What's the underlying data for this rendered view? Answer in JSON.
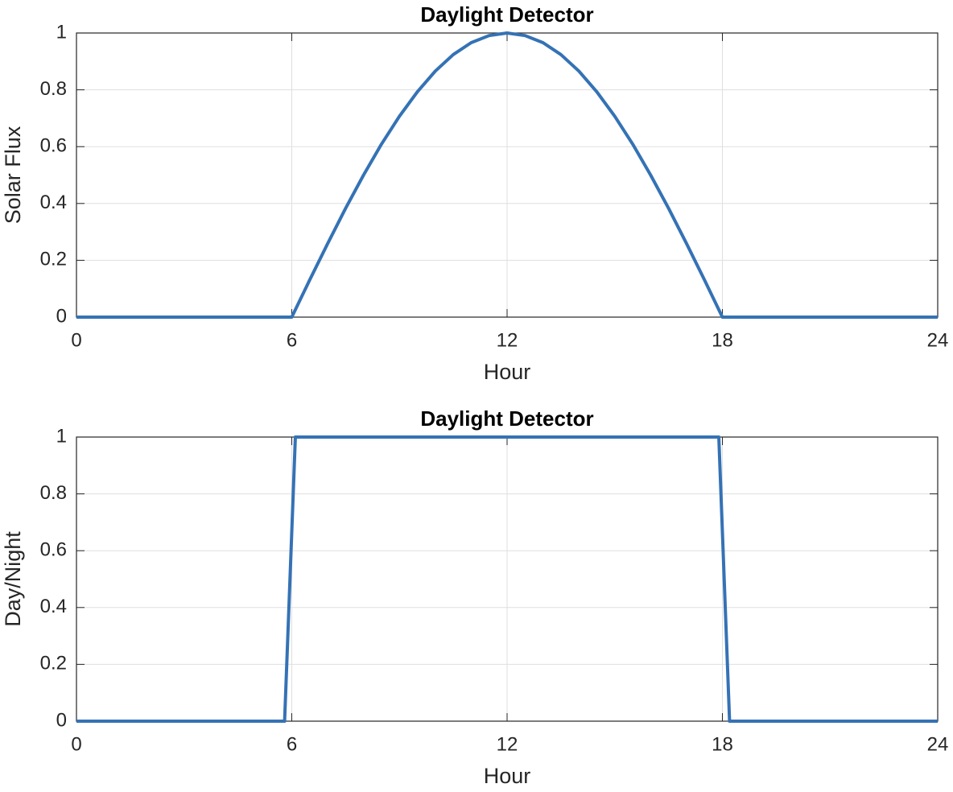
{
  "chart_data": [
    {
      "type": "line",
      "title": "Daylight Detector",
      "xlabel": "Hour",
      "ylabel": "Solar Flux",
      "color": "#3572b5",
      "x": [
        0,
        0.5,
        1,
        1.5,
        2,
        2.5,
        3,
        3.5,
        4,
        4.5,
        5,
        5.5,
        6,
        6.5,
        7,
        7.5,
        8,
        8.5,
        9,
        9.5,
        10,
        10.5,
        11,
        11.5,
        12,
        12.5,
        13,
        13.5,
        14,
        14.5,
        15,
        15.5,
        16,
        16.5,
        17,
        17.5,
        18,
        18.5,
        19,
        19.5,
        20,
        20.5,
        21,
        21.5,
        22,
        22.5,
        23,
        23.5,
        24
      ],
      "values": [
        0,
        0,
        0,
        0,
        0,
        0,
        0,
        0,
        0,
        0,
        0,
        0,
        0,
        0.131,
        0.259,
        0.383,
        0.5,
        0.609,
        0.707,
        0.793,
        0.866,
        0.924,
        0.966,
        0.991,
        1,
        0.991,
        0.966,
        0.924,
        0.866,
        0.793,
        0.707,
        0.609,
        0.5,
        0.383,
        0.259,
        0.131,
        0,
        0,
        0,
        0,
        0,
        0,
        0,
        0,
        0,
        0,
        0,
        0,
        0
      ],
      "xlim": [
        0,
        24
      ],
      "xticks": [
        0,
        6,
        12,
        18,
        24
      ],
      "ylim": [
        0,
        1
      ],
      "yticks": [
        0,
        0.2,
        0.4,
        0.6,
        0.8,
        1
      ],
      "grid": true
    },
    {
      "type": "line",
      "title": "Daylight Detector",
      "xlabel": "Hour",
      "ylabel": "Day/Night",
      "color": "#3572b5",
      "x": [
        0,
        5.8,
        6.1,
        17.9,
        18.2,
        24
      ],
      "values": [
        0,
        0,
        1,
        1,
        0,
        0
      ],
      "xlim": [
        0,
        24
      ],
      "xticks": [
        0,
        6,
        12,
        18,
        24
      ],
      "ylim": [
        0,
        1
      ],
      "yticks": [
        0,
        0.2,
        0.4,
        0.6,
        0.8,
        1
      ],
      "grid": true
    }
  ]
}
